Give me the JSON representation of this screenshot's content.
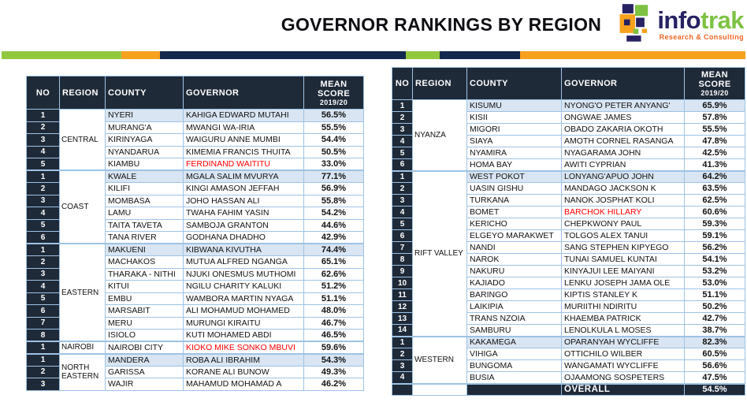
{
  "header": {
    "title": "GOVERNOR RANKINGS BY REGION"
  },
  "logo": {
    "name_part1": "info",
    "name_part2": "trak",
    "tagline": "Research & Consulting"
  },
  "columns": {
    "no": "NO",
    "region": "REGION",
    "county": "COUNTY",
    "governor": "GOVERNOR",
    "score_line1": "MEAN",
    "score_line2": "SCORE",
    "score_line3": "2019/20"
  },
  "colors": {
    "dark_header": "#1F2A38",
    "highlight_row": "#D9E5F2",
    "table_border": "#9DC3E6",
    "alert_red": "#FF0000",
    "accent_green": "#92C83E",
    "accent_orange": "#F6A21D",
    "accent_navy": "#12294D",
    "logo_navy": "#262262",
    "logo_green": "#7DC242",
    "logo_tagline_orange": "#F26522"
  },
  "left_table": {
    "regions": [
      {
        "name": "CENTRAL",
        "rows": [
          {
            "no": "1",
            "county": "NYERI",
            "governor": "KAHIGA EDWARD MUTAHI",
            "score": "56.5%",
            "highlight": true,
            "red": false
          },
          {
            "no": "2",
            "county": "MURANG'A",
            "governor": "MWANGI WA-IRIA",
            "score": "55.5%",
            "highlight": false,
            "red": false
          },
          {
            "no": "3",
            "county": "KIRINYAGA",
            "governor": "WAIGURU ANNE MUMBI",
            "score": "54.4%",
            "highlight": false,
            "red": false
          },
          {
            "no": "4",
            "county": "NYANDARUA",
            "governor": "KIMEMIA FRANCIS THUITA",
            "score": "50.5%",
            "highlight": false,
            "red": false
          },
          {
            "no": "5",
            "county": "KIAMBU",
            "governor": "FERDINAND WAITITU",
            "score": "33.0%",
            "highlight": false,
            "red": true
          }
        ]
      },
      {
        "name": "COAST",
        "rows": [
          {
            "no": "1",
            "county": "KWALE",
            "governor": "MGALA SALIM MVURYA",
            "score": "77.1%",
            "highlight": true,
            "red": false
          },
          {
            "no": "2",
            "county": "KILIFI",
            "governor": "KINGI AMASON JEFFAH",
            "score": "56.9%",
            "highlight": false,
            "red": false
          },
          {
            "no": "3",
            "county": "MOMBASA",
            "governor": "JOHO HASSAN ALI",
            "score": "55.8%",
            "highlight": false,
            "red": false
          },
          {
            "no": "4",
            "county": "LAMU",
            "governor": "TWAHA FAHIM YASIN",
            "score": "54.2%",
            "highlight": false,
            "red": false
          },
          {
            "no": "5",
            "county": "TAITA TAVETA",
            "governor": "SAMBOJA GRANTON",
            "score": "44.6%",
            "highlight": false,
            "red": false
          },
          {
            "no": "6",
            "county": "TANA RIVER",
            "governor": "GODHANA DHADHO",
            "score": "42.9%",
            "highlight": false,
            "red": false
          }
        ]
      },
      {
        "name": "EASTERN",
        "rows": [
          {
            "no": "1",
            "county": "MAKUENI",
            "governor": "KIBWANA KIVUTHA",
            "score": "74.4%",
            "highlight": true,
            "red": false
          },
          {
            "no": "2",
            "county": "MACHAKOS",
            "governor": "MUTUA ALFRED NGANGA",
            "score": "65.1%",
            "highlight": false,
            "red": false
          },
          {
            "no": "3",
            "county": "THARAKA - NITHI",
            "governor": "NJUKI ONESMUS MUTHOMI",
            "score": "62.6%",
            "highlight": false,
            "red": false
          },
          {
            "no": "4",
            "county": "KITUI",
            "governor": "NGILU CHARITY KALUKI",
            "score": "51.2%",
            "highlight": false,
            "red": false
          },
          {
            "no": "5",
            "county": "EMBU",
            "governor": "WAMBORA MARTIN NYAGA",
            "score": "51.1%",
            "highlight": false,
            "red": false
          },
          {
            "no": "6",
            "county": "MARSABIT",
            "governor": "ALI MOHAMUD MOHAMED",
            "score": "48.0%",
            "highlight": false,
            "red": false
          },
          {
            "no": "7",
            "county": "MERU",
            "governor": "MURUNGI KIRAITU",
            "score": "46.7%",
            "highlight": false,
            "red": false
          },
          {
            "no": "8",
            "county": "ISIOLO",
            "governor": "KUTI MOHAMED ABDI",
            "score": "46.5%",
            "highlight": false,
            "red": false
          }
        ]
      },
      {
        "name": "NAIROBI",
        "rows": [
          {
            "no": "1",
            "county": "NAIROBI CITY",
            "governor": "KIOKO MIKE SONKO MBUVI",
            "score": "59.6%",
            "highlight": false,
            "red": true
          }
        ]
      },
      {
        "name": "NORTH EASTERN",
        "rows": [
          {
            "no": "1",
            "county": "MANDERA",
            "governor": "ROBA ALI IBRAHIM",
            "score": "54.3%",
            "highlight": true,
            "red": false
          },
          {
            "no": "2",
            "county": "GARISSA",
            "governor": "KORANE ALI BUNOW",
            "score": "49.3%",
            "highlight": false,
            "red": false
          },
          {
            "no": "3",
            "county": "WAJIR",
            "governor": "MAHAMUD MOHAMAD A",
            "score": "46.2%",
            "highlight": false,
            "red": false
          }
        ]
      }
    ]
  },
  "right_table": {
    "regions": [
      {
        "name": "NYANZA",
        "rows": [
          {
            "no": "1",
            "county": "KISUMU",
            "governor": "NYONG'O PETER ANYANG'",
            "score": "65.9%",
            "highlight": true,
            "red": false
          },
          {
            "no": "2",
            "county": "KISII",
            "governor": "ONGWAE JAMES",
            "score": "57.8%",
            "highlight": false,
            "red": false
          },
          {
            "no": "3",
            "county": "MIGORI",
            "governor": "OBADO ZAKARIA OKOTH",
            "score": "55.5%",
            "highlight": false,
            "red": false
          },
          {
            "no": "4",
            "county": "SIAYA",
            "governor": "AMOTH CORNEL RASANGA",
            "score": "47.8%",
            "highlight": false,
            "red": false
          },
          {
            "no": "5",
            "county": "NYAMIRA",
            "governor": "NYAGARAMA JOHN",
            "score": "42.5%",
            "highlight": false,
            "red": false
          },
          {
            "no": "6",
            "county": "HOMA BAY",
            "governor": "AWITI CYPRIAN",
            "score": "41.3%",
            "highlight": false,
            "red": false
          }
        ]
      },
      {
        "name": "RIFT VALLEY",
        "rows": [
          {
            "no": "1",
            "county": "WEST POKOT",
            "governor": "LONYANG'APUO JOHN",
            "score": "64.2%",
            "highlight": true,
            "red": false
          },
          {
            "no": "2",
            "county": "UASIN GISHU",
            "governor": "MANDAGO JACKSON K",
            "score": "63.5%",
            "highlight": false,
            "red": false
          },
          {
            "no": "3",
            "county": "TURKANA",
            "governor": "NANOK JOSPHAT KOLI",
            "score": "62.5%",
            "highlight": false,
            "red": false
          },
          {
            "no": "4",
            "county": "BOMET",
            "governor": "BARCHOK HILLARY",
            "score": "60.6%",
            "highlight": false,
            "red": true
          },
          {
            "no": "5",
            "county": "KERICHO",
            "governor": "CHEPKWONY PAUL",
            "score": "59.3%",
            "highlight": false,
            "red": false
          },
          {
            "no": "6",
            "county": "ELGEYO MARAKWET",
            "governor": "TOLGOS ALEX TANUI",
            "score": "59.1%",
            "highlight": false,
            "red": false
          },
          {
            "no": "7",
            "county": "NANDI",
            "governor": "SANG STEPHEN KIPYEGO",
            "score": "56.2%",
            "highlight": false,
            "red": false
          },
          {
            "no": "8",
            "county": "NAROK",
            "governor": "TUNAI SAMUEL KUNTAI",
            "score": "54.1%",
            "highlight": false,
            "red": false
          },
          {
            "no": "9",
            "county": "NAKURU",
            "governor": "KINYAJUI LEE MAIYANI",
            "score": "53.2%",
            "highlight": false,
            "red": false
          },
          {
            "no": "10",
            "county": "KAJIADO",
            "governor": "LENKU JOSEPH JAMA OLE",
            "score": "53.0%",
            "highlight": false,
            "red": false
          },
          {
            "no": "11",
            "county": "BARINGO",
            "governor": "KIPTIS STANLEY K",
            "score": "51.1%",
            "highlight": false,
            "red": false
          },
          {
            "no": "12",
            "county": "LAIKIPIA",
            "governor": "MURIITHI NDIRITU",
            "score": "50.2%",
            "highlight": false,
            "red": false
          },
          {
            "no": "13",
            "county": "TRANS NZOIA",
            "governor": "KHAEMBA PATRICK",
            "score": "42.7%",
            "highlight": false,
            "red": false
          },
          {
            "no": "14",
            "county": "SAMBURU",
            "governor": "LENOLKULA L MOSES",
            "score": "38.7%",
            "highlight": false,
            "red": false
          }
        ]
      },
      {
        "name": "WESTERN",
        "rows": [
          {
            "no": "1",
            "county": "KAKAMEGA",
            "governor": "OPARANYAH WYCLIFFE",
            "score": "82.3%",
            "highlight": true,
            "red": false
          },
          {
            "no": "2",
            "county": "VIHIGA",
            "governor": "OTTICHILO WILBER",
            "score": "60.5%",
            "highlight": false,
            "red": false
          },
          {
            "no": "3",
            "county": "BUNGOMA",
            "governor": "WANGAMATI WYCLIFFE",
            "score": "56.6%",
            "highlight": false,
            "red": false
          },
          {
            "no": "4",
            "county": "BUSIA",
            "governor": "OJAAMONG SOSPETERS",
            "score": "47.5%",
            "highlight": false,
            "red": false
          }
        ]
      }
    ],
    "overall": {
      "label": "OVERALL",
      "score": "54.5%"
    }
  }
}
